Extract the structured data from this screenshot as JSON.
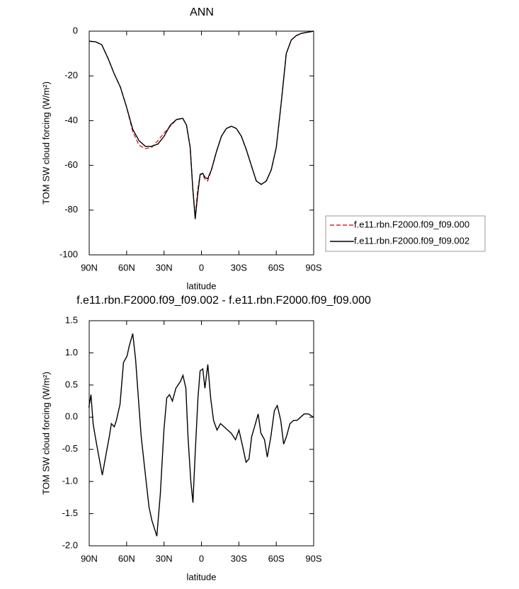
{
  "chart_data": [
    {
      "type": "line",
      "title": "ANN",
      "x_label": "latitude",
      "y_label": "TOM SW cloud forcing (W/m²)",
      "x": [
        90,
        85,
        80,
        75,
        70,
        65,
        60,
        55,
        50,
        45,
        40,
        35,
        30,
        25,
        20,
        15,
        12,
        9,
        7,
        5,
        3,
        1,
        -1,
        -3,
        -5,
        -8,
        -12,
        -16,
        -20,
        -24,
        -28,
        -32,
        -36,
        -40,
        -44,
        -48,
        -52,
        -56,
        -60,
        -64,
        -68,
        -72,
        -76,
        -80,
        -85,
        -90
      ],
      "series": [
        {
          "name": "f.e11.rbn.F2000.f09_f09.000",
          "color": "#d62728",
          "dashed": true,
          "values": [
            -4.5,
            -4.8,
            -6,
            -12,
            -19,
            -25,
            -34,
            -45,
            -51,
            -52.5,
            -52,
            -49,
            -45.5,
            -42.5,
            -39.5,
            -39,
            -42,
            -52,
            -70,
            -83,
            -71,
            -64,
            -64,
            -66.5,
            -67,
            -62,
            -54,
            -47,
            -43.5,
            -42.5,
            -43.5,
            -47,
            -53,
            -60,
            -67,
            -68.5,
            -67,
            -62,
            -52,
            -32,
            -10,
            -4,
            -2,
            -1,
            -0.5,
            0
          ]
        },
        {
          "name": "f.e11.rbn.F2000.f09_f09.002",
          "color": "#000000",
          "dashed": false,
          "values": [
            -4.5,
            -4.7,
            -6,
            -12,
            -19,
            -25,
            -34,
            -44,
            -49,
            -51.5,
            -51.5,
            -50.5,
            -47,
            -42,
            -39.5,
            -39,
            -42,
            -52,
            -70,
            -84,
            -73,
            -64,
            -63.5,
            -65.5,
            -66,
            -62,
            -54,
            -47,
            -43.5,
            -42.5,
            -43.5,
            -47,
            -53,
            -60,
            -67,
            -68.5,
            -67,
            -62,
            -52,
            -32,
            -10,
            -4,
            -2,
            -1,
            -0.5,
            0
          ]
        }
      ],
      "xlim": [
        90,
        -90
      ],
      "xticks": [
        {
          "value": 90,
          "label": "90N"
        },
        {
          "value": 60,
          "label": "60N"
        },
        {
          "value": 30,
          "label": "30N"
        },
        0,
        {
          "value": -30,
          "label": "30S"
        },
        {
          "value": -60,
          "label": "60S"
        },
        {
          "value": -90,
          "label": "90S"
        }
      ],
      "ylim": [
        -100,
        0
      ],
      "yticks": [
        -100,
        -80,
        -60,
        -40,
        -20,
        0
      ],
      "legend": "right"
    },
    {
      "type": "line",
      "title": "f.e11.rbn.F2000.f09_f09.002 - f.e11.rbn.F2000.f09_f09.000",
      "x_label": "latitude",
      "y_label": "TOM SW cloud forcing (W/m²)",
      "x": [
        90.3,
        88.6,
        86.9,
        85.2,
        82.4,
        79.5,
        76.7,
        73.9,
        72.2,
        69.9,
        68.2,
        65.3,
        62.5,
        59.7,
        58,
        55.1,
        52.8,
        50.6,
        48.3,
        44.9,
        42,
        39.8,
        35.8,
        33,
        30.1,
        27.8,
        25.6,
        23.3,
        20.5,
        17,
        14.8,
        12.5,
        10.8,
        8.5,
        6.8,
        5.1,
        2.8,
        1.1,
        -1.1,
        -2.8,
        -5.1,
        -7.4,
        -9.7,
        -12.5,
        -15.3,
        -18.2,
        -21,
        -23.9,
        -27.3,
        -30.1,
        -33,
        -35.8,
        -38.1,
        -40.3,
        -42.6,
        -45.5,
        -47.7,
        -50.6,
        -52.8,
        -55.7,
        -58.5,
        -60.8,
        -63.6,
        -65.9,
        -68.2,
        -71,
        -73.9,
        -76.7,
        -79.5,
        -82.4,
        -85.8,
        -89.8
      ],
      "values": [
        0.15,
        0.35,
        -0.1,
        -0.3,
        -0.6,
        -0.9,
        -0.6,
        -0.3,
        -0.1,
        -0.15,
        -0.05,
        0.2,
        0.85,
        0.95,
        1.1,
        1.3,
        0.9,
        0.3,
        -0.3,
        -0.9,
        -1.4,
        -1.6,
        -1.85,
        -1.2,
        -0.2,
        0.3,
        0.35,
        0.25,
        0.45,
        0.55,
        0.65,
        0.45,
        -0.3,
        -1.0,
        -1.33,
        -0.6,
        0.3,
        0.72,
        0.75,
        0.45,
        0.82,
        0.3,
        -0.05,
        -0.2,
        -0.1,
        -0.15,
        -0.2,
        -0.25,
        -0.35,
        -0.2,
        -0.45,
        -0.7,
        -0.65,
        -0.3,
        -0.15,
        0.05,
        -0.25,
        -0.35,
        -0.62,
        -0.3,
        0.1,
        0.18,
        -0.05,
        -0.42,
        -0.3,
        -0.1,
        -0.05,
        -0.05,
        0.0,
        0.05,
        0.05,
        0.0
      ],
      "color": "#000000",
      "xlim": [
        90,
        -90
      ],
      "xticks": [
        {
          "value": 90,
          "label": "90N"
        },
        {
          "value": 60,
          "label": "60N"
        },
        {
          "value": 30,
          "label": "30N"
        },
        0,
        {
          "value": -30,
          "label": "30S"
        },
        {
          "value": -60,
          "label": "60S"
        },
        {
          "value": -90,
          "label": "90S"
        }
      ],
      "ylim": [
        -2,
        1.5
      ],
      "yticks": [
        {
          "value": -2,
          "label": "-2.0"
        },
        -1.5,
        {
          "value": -1,
          "label": "-1.0"
        },
        -0.5,
        {
          "value": 0,
          "label": "0.0"
        },
        0.5,
        {
          "value": 1,
          "label": "1.0"
        },
        1.5
      ]
    }
  ]
}
